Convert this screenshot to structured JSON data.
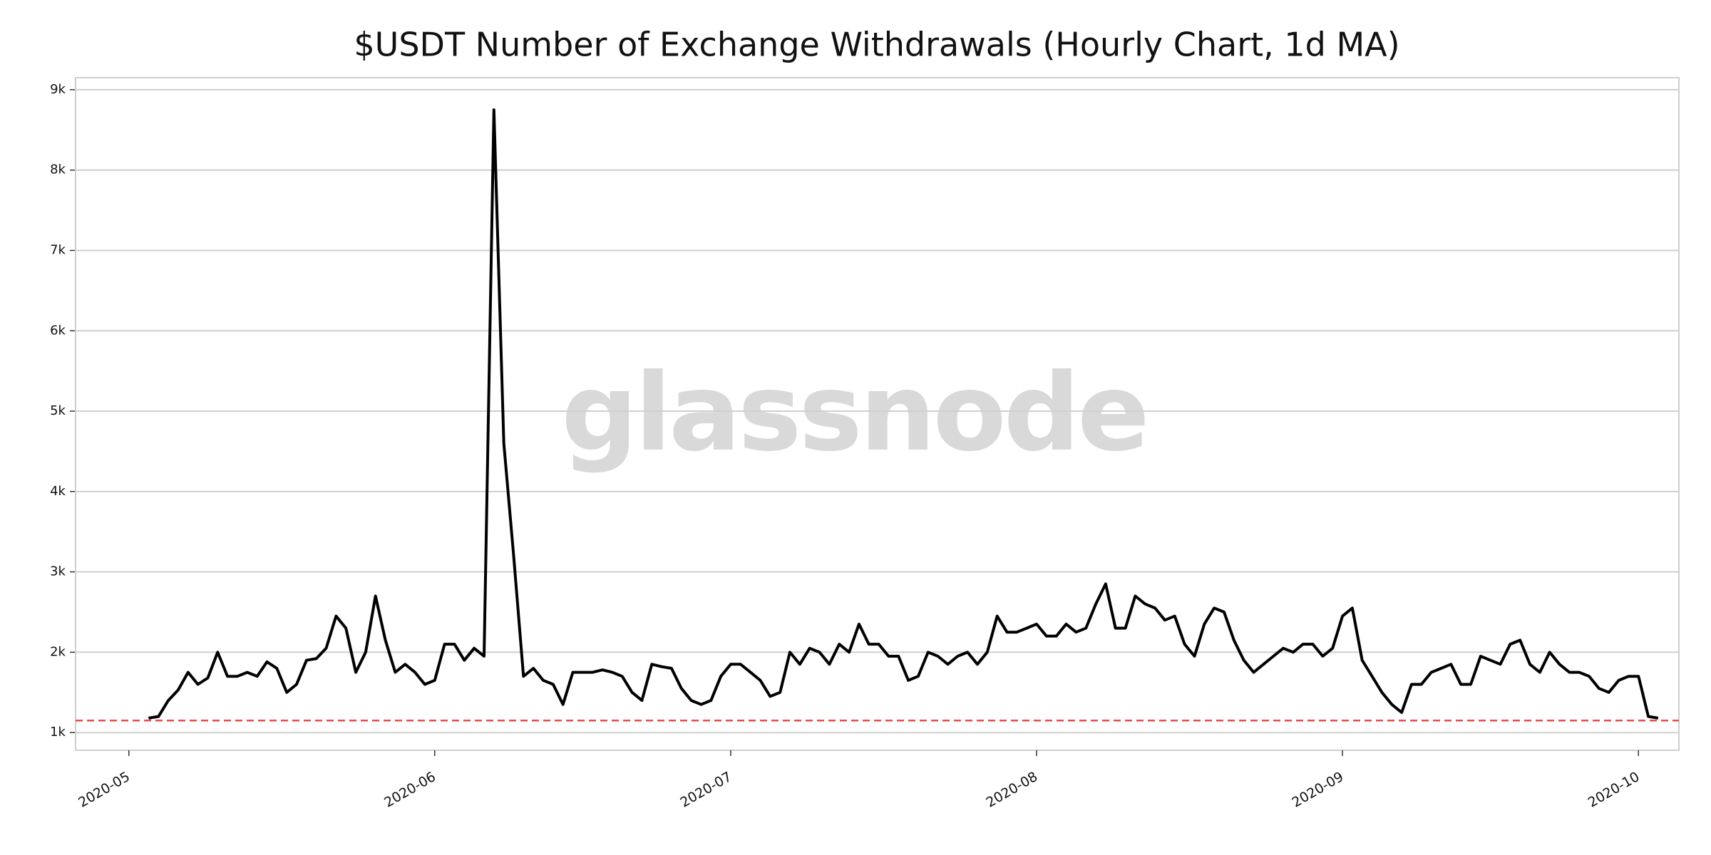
{
  "chart_data": {
    "type": "line",
    "title": "$USDT Number of Exchange Withdrawals (Hourly Chart, 1d MA)",
    "watermark": "glassnode",
    "categories": [
      "2020-05",
      null,
      null,
      null,
      null,
      null,
      null,
      null,
      null,
      null,
      null,
      null,
      null,
      null,
      null,
      null,
      null,
      null,
      null,
      null,
      null,
      null,
      null,
      null,
      null,
      null,
      null,
      null,
      null,
      null,
      null,
      "2020-06",
      null,
      null,
      null,
      null,
      null,
      null,
      null,
      null,
      null,
      null,
      null,
      null,
      null,
      null,
      null,
      null,
      null,
      null,
      null,
      null,
      null,
      null,
      null,
      null,
      null,
      null,
      null,
      null,
      null,
      "2020-07",
      null,
      null,
      null,
      null,
      null,
      null,
      null,
      null,
      null,
      null,
      null,
      null,
      null,
      null,
      null,
      null,
      null,
      null,
      null,
      null,
      null,
      null,
      null,
      null,
      null,
      null,
      null,
      null,
      null,
      null,
      "2020-08",
      null,
      null,
      null,
      null,
      null,
      null,
      null,
      null,
      null,
      null,
      null,
      null,
      null,
      null,
      null,
      null,
      null,
      null,
      null,
      null,
      null,
      null,
      null,
      null,
      null,
      null,
      null,
      null,
      null,
      null,
      "2020-09",
      null,
      null,
      null,
      null,
      null,
      null,
      null,
      null,
      null,
      null,
      null,
      null,
      null,
      null,
      null,
      null,
      null,
      null,
      null,
      null,
      null,
      null,
      null,
      null,
      null,
      null,
      null,
      null,
      null,
      "2020-10",
      null,
      null
    ],
    "values": [
      null,
      null,
      1180,
      1200,
      1400,
      1530,
      1750,
      1600,
      1680,
      2000,
      1700,
      1700,
      1750,
      1700,
      1880,
      1800,
      1500,
      1600,
      1900,
      1920,
      2050,
      2450,
      2300,
      1750,
      2000,
      2700,
      2150,
      1750,
      1850,
      1750,
      1600,
      1650,
      2100,
      2100,
      1900,
      2050,
      1950,
      8750,
      4600,
      3200,
      1700,
      1800,
      1650,
      1600,
      1350,
      1750,
      1750,
      1750,
      1780,
      1750,
      1700,
      1500,
      1400,
      1850,
      1820,
      1800,
      1550,
      1400,
      1350,
      1400,
      1700,
      1850,
      1850,
      1750,
      1650,
      1450,
      1500,
      2000,
      1850,
      2050,
      2000,
      1850,
      2100,
      2000,
      2350,
      2100,
      2100,
      1950,
      1950,
      1650,
      1700,
      2000,
      1950,
      1850,
      1950,
      2000,
      1850,
      2000,
      2450,
      2250,
      2250,
      2300,
      2350,
      2200,
      2200,
      2350,
      2250,
      2300,
      2600,
      2850,
      2300,
      2300,
      2700,
      2600,
      2550,
      2400,
      2450,
      2100,
      1950,
      2350,
      2550,
      2500,
      2150,
      1900,
      1750,
      1850,
      1950,
      2050,
      2000,
      2100,
      2100,
      1950,
      2050,
      2450,
      2550,
      1900,
      1700,
      1500,
      1350,
      1250,
      1600,
      1600,
      1750,
      1800,
      1850,
      1600,
      1600,
      1950,
      1900,
      1850,
      2100,
      2150,
      1850,
      1750,
      2000,
      1850,
      1750,
      1750,
      1700,
      1550,
      1500,
      1650,
      1700,
      1700,
      1200,
      1180
    ],
    "color": "#000000",
    "reference_line": {
      "value": 1150,
      "color": "#e84a4a"
    },
    "ylim": [
      780,
      9150
    ],
    "yticks": [
      {
        "value": 1000,
        "label": "1k"
      },
      {
        "value": 2000,
        "label": "2k"
      },
      {
        "value": 3000,
        "label": "3k"
      },
      {
        "value": 4000,
        "label": "4k"
      },
      {
        "value": 5000,
        "label": "5k"
      },
      {
        "value": 6000,
        "label": "6k"
      },
      {
        "value": 7000,
        "label": "7k"
      },
      {
        "value": 8000,
        "label": "8k"
      },
      {
        "value": 9000,
        "label": "9k"
      }
    ],
    "grid": true
  }
}
